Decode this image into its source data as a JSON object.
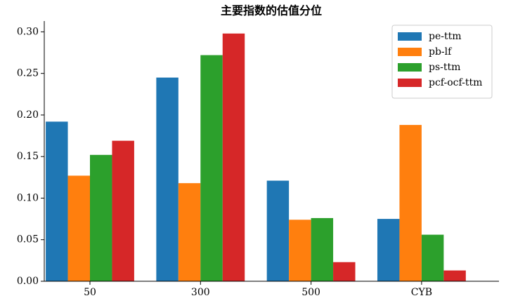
{
  "chart_data": {
    "type": "bar",
    "title": "主要指数的估值分位",
    "categories": [
      "50",
      "300",
      "500",
      "CYB"
    ],
    "series": [
      {
        "name": "pe-ttm",
        "color": "#1f77b4",
        "values": [
          0.192,
          0.245,
          0.121,
          0.075
        ]
      },
      {
        "name": "pb-lf",
        "color": "#ff7f0e",
        "values": [
          0.127,
          0.118,
          0.074,
          0.188
        ]
      },
      {
        "name": "ps-ttm",
        "color": "#2ca02c",
        "values": [
          0.152,
          0.272,
          0.076,
          0.056
        ]
      },
      {
        "name": "pcf-ocf-ttm",
        "color": "#d62728",
        "values": [
          0.169,
          0.298,
          0.023,
          0.013
        ]
      }
    ],
    "ylim": [
      0,
      0.313
    ],
    "yticks": [
      {
        "value": 0,
        "label": "0.00"
      },
      {
        "value": 0.05,
        "label": "0.05"
      },
      {
        "value": 0.1,
        "label": "0.10"
      },
      {
        "value": 0.15,
        "label": "0.15"
      },
      {
        "value": 0.2,
        "label": "0.20"
      },
      {
        "value": 0.25,
        "label": "0.25"
      },
      {
        "value": 0.3,
        "label": "0.30"
      }
    ],
    "legend": "upper right"
  }
}
